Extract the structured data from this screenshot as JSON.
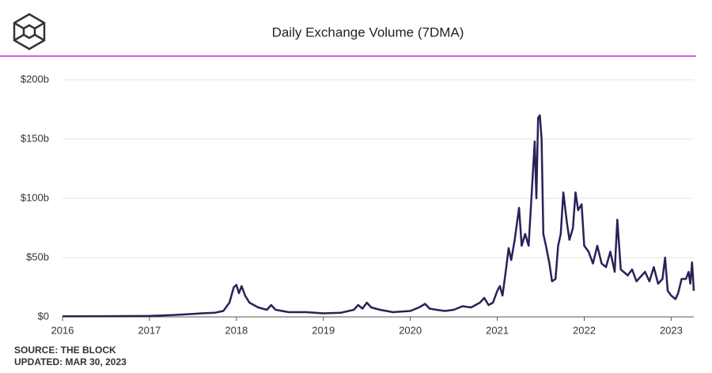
{
  "chart_data": {
    "type": "line",
    "title": "Daily Exchange Volume (7DMA)",
    "source": "SOURCE: THE BLOCK",
    "updated": "UPDATED: MAR 30, 2023",
    "xlim": [
      2016,
      2023.26
    ],
    "xticks": [
      2016,
      2017,
      2018,
      2019,
      2020,
      2021,
      2022,
      2023
    ],
    "ylim": [
      0,
      200
    ],
    "yticks": [
      {
        "value": 0,
        "label": "$0"
      },
      {
        "value": 50,
        "label": "$50b"
      },
      {
        "value": 100,
        "label": "$100b"
      },
      {
        "value": 150,
        "label": "$150b"
      },
      {
        "value": 200,
        "label": "$200b"
      }
    ],
    "grid": true,
    "series": [
      {
        "color": "#2a2158",
        "x": [
          2016.0,
          2016.5,
          2017.0,
          2017.25,
          2017.5,
          2017.6,
          2017.75,
          2017.85,
          2017.92,
          2017.97,
          2018.0,
          2018.03,
          2018.06,
          2018.1,
          2018.15,
          2018.25,
          2018.35,
          2018.4,
          2018.45,
          2018.6,
          2018.8,
          2019.0,
          2019.2,
          2019.35,
          2019.4,
          2019.45,
          2019.5,
          2019.55,
          2019.65,
          2019.8,
          2020.0,
          2020.1,
          2020.17,
          2020.22,
          2020.3,
          2020.4,
          2020.5,
          2020.6,
          2020.7,
          2020.8,
          2020.85,
          2020.9,
          2020.95,
          2021.0,
          2021.03,
          2021.06,
          2021.1,
          2021.13,
          2021.16,
          2021.2,
          2021.25,
          2021.28,
          2021.32,
          2021.36,
          2021.4,
          2021.43,
          2021.45,
          2021.47,
          2021.49,
          2021.51,
          2021.53,
          2021.56,
          2021.6,
          2021.63,
          2021.67,
          2021.7,
          2021.73,
          2021.76,
          2021.8,
          2021.83,
          2021.87,
          2021.9,
          2021.93,
          2021.97,
          2022.0,
          2022.05,
          2022.1,
          2022.15,
          2022.2,
          2022.25,
          2022.3,
          2022.35,
          2022.38,
          2022.42,
          2022.5,
          2022.55,
          2022.6,
          2022.7,
          2022.75,
          2022.8,
          2022.85,
          2022.9,
          2022.93,
          2022.96,
          2023.0,
          2023.05,
          2023.08,
          2023.12,
          2023.17,
          2023.2,
          2023.22,
          2023.24,
          2023.26
        ],
        "values": [
          0.5,
          0.6,
          0.8,
          1.5,
          2.5,
          3,
          3.5,
          5,
          12,
          25,
          27,
          20,
          26,
          18,
          12,
          8,
          6,
          10,
          6,
          4,
          4,
          3,
          3.5,
          6,
          10,
          7,
          12,
          8,
          6,
          4,
          5,
          8,
          11,
          7,
          6,
          5,
          6,
          9,
          8,
          12,
          16,
          10,
          12,
          22,
          26,
          18,
          40,
          58,
          48,
          65,
          92,
          60,
          70,
          60,
          110,
          148,
          100,
          168,
          170,
          150,
          70,
          60,
          45,
          30,
          32,
          60,
          70,
          105,
          80,
          65,
          75,
          105,
          90,
          95,
          60,
          55,
          45,
          60,
          45,
          42,
          55,
          38,
          82,
          40,
          35,
          40,
          30,
          38,
          30,
          42,
          28,
          32,
          50,
          22,
          18,
          15,
          20,
          32,
          32,
          38,
          28,
          46,
          22
        ]
      }
    ]
  }
}
